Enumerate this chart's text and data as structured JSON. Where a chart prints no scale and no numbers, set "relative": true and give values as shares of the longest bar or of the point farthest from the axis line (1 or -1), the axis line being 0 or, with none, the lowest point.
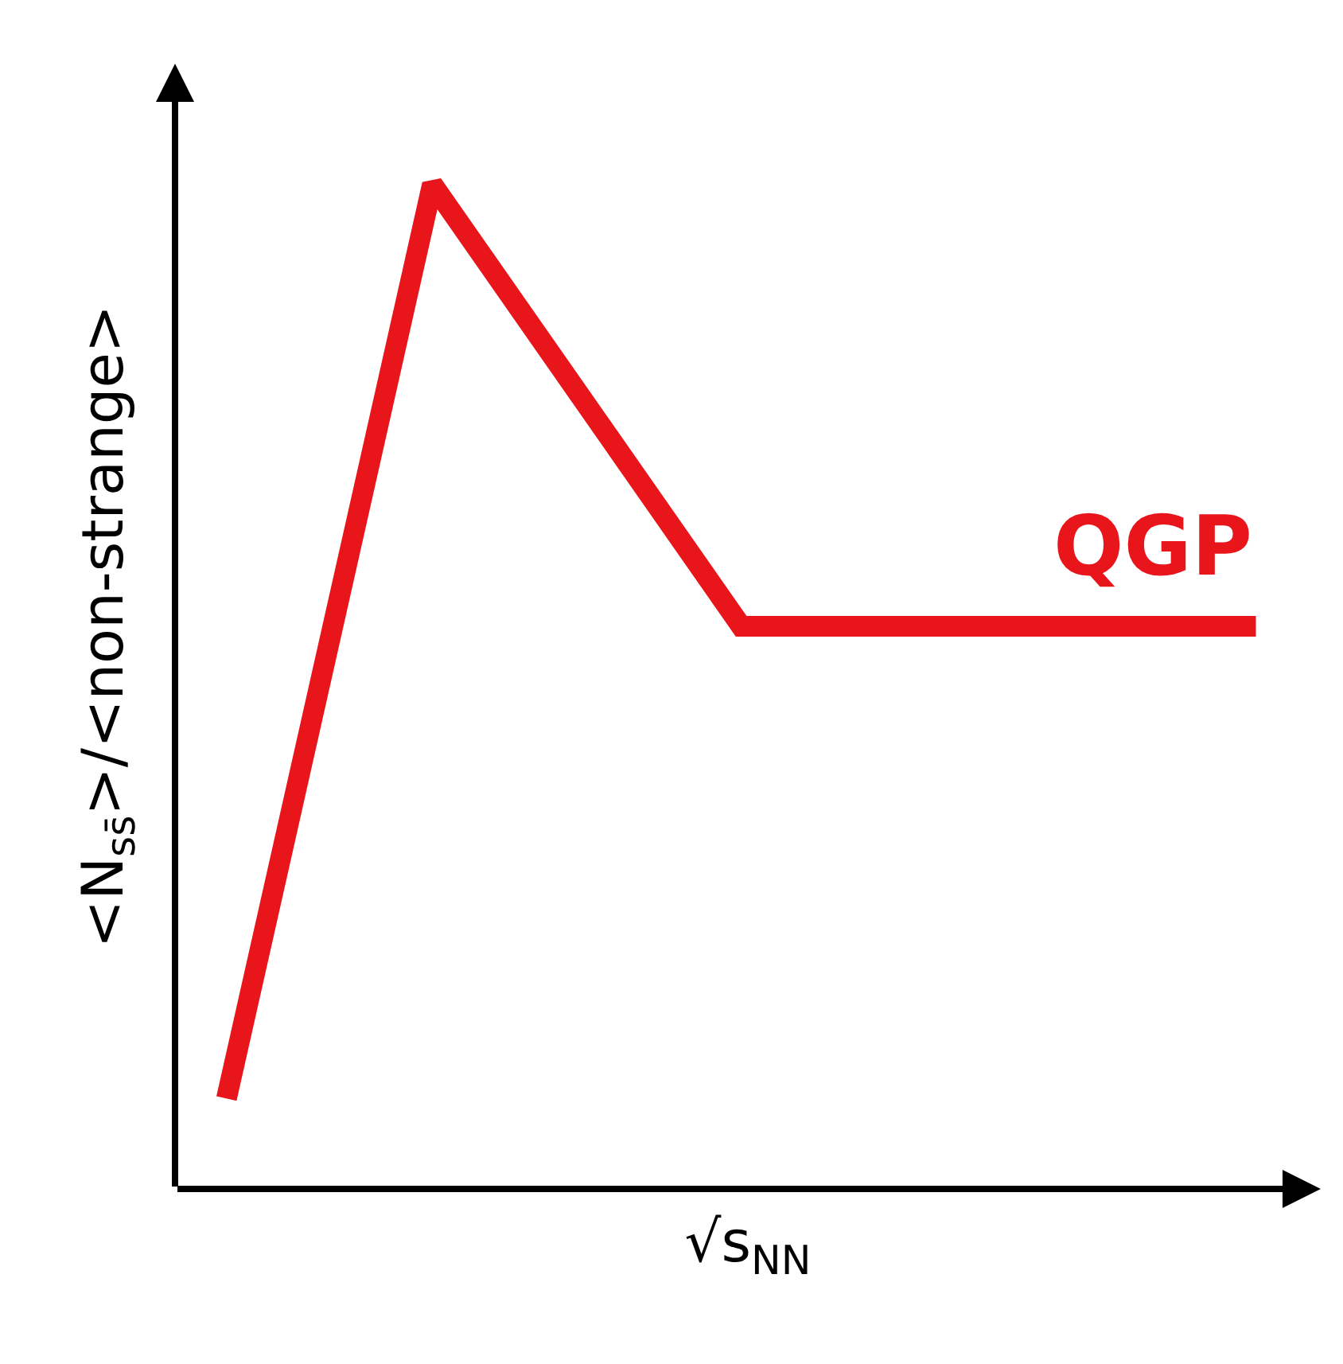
{
  "chart_data": {
    "type": "line",
    "relative": true,
    "xlabel": "√s$_{NN}$",
    "ylabel": "<N$_{ss̄}$>/<non-strange>",
    "categories": [
      null,
      null,
      null,
      null,
      null,
      null,
      null,
      null,
      null,
      null,
      null,
      null,
      null,
      null,
      null,
      null,
      null,
      null,
      null,
      null,
      null,
      null
    ],
    "series": [
      {
        "name": "QGP",
        "color": "#e8151b",
        "values": [
          null,
          0.09,
          null,
          null,
          null,
          1,
          null,
          null,
          null,
          null,
          null,
          0.56,
          null,
          null,
          null,
          null,
          null,
          null,
          null,
          null,
          null,
          0.56
        ]
      }
    ],
    "grid": false,
    "legend": false,
    "marker": "none",
    "line_style": "solid"
  }
}
